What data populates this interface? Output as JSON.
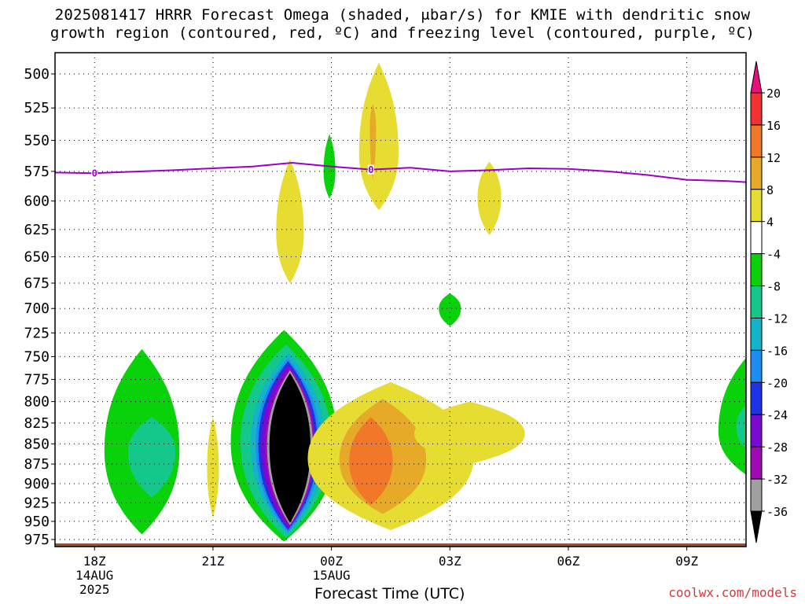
{
  "title_line1": "2025081417 HRRR Forecast Omega (shaded, μbar/s) for KMIE with dendritic snow",
  "title_line2": "growth region (contoured, red, ºC) and freezing level (contoured, purple, ºC)",
  "watermark": "coolwx.com/models",
  "chart_data": {
    "type": "heatmap",
    "xlabel": "Forecast Time (UTC)",
    "ylabel": "",
    "x_unit": "hours since 2025-08-14 17Z",
    "xlim": [
      17,
      34.5
    ],
    "ylim": [
      985,
      485
    ],
    "y_scale": "log-pressure",
    "x_ticks": [
      {
        "x": 18,
        "label": "18Z",
        "sub": [
          "14AUG",
          "2025"
        ]
      },
      {
        "x": 21,
        "label": "21Z",
        "sub": []
      },
      {
        "x": 24,
        "label": "00Z",
        "sub": [
          "15AUG"
        ]
      },
      {
        "x": 27,
        "label": "03Z",
        "sub": []
      },
      {
        "x": 30,
        "label": "06Z",
        "sub": []
      },
      {
        "x": 33,
        "label": "09Z",
        "sub": []
      }
    ],
    "y_ticks": [
      500,
      525,
      550,
      575,
      600,
      625,
      650,
      675,
      700,
      725,
      750,
      775,
      800,
      825,
      850,
      875,
      900,
      925,
      950,
      975
    ],
    "grid": true,
    "colorbar": {
      "labels": [
        "20",
        "16",
        "12",
        "8",
        "4",
        "-4",
        "-8",
        "-12",
        "-16",
        "-20",
        "-24",
        "-28",
        "-32",
        "-36"
      ],
      "bins": [
        {
          "color": "#e8107a",
          "range": [
            20,
            null
          ]
        },
        {
          "color": "#f03232",
          "range": [
            16,
            20
          ]
        },
        {
          "color": "#f07828",
          "range": [
            12,
            16
          ]
        },
        {
          "color": "#e6aa28",
          "range": [
            8,
            12
          ]
        },
        {
          "color": "#e6dc32",
          "range": [
            4,
            8
          ]
        },
        {
          "color": "#ffffff",
          "range": [
            -4,
            4
          ]
        },
        {
          "color": "#0ad20a",
          "range": [
            -8,
            -4
          ]
        },
        {
          "color": "#14c88c",
          "range": [
            -12,
            -8
          ]
        },
        {
          "color": "#14b4c8",
          "range": [
            -16,
            -12
          ]
        },
        {
          "color": "#1e8cf0",
          "range": [
            -20,
            -16
          ]
        },
        {
          "color": "#1e32e6",
          "range": [
            -24,
            -20
          ]
        },
        {
          "color": "#780ad2",
          "range": [
            -28,
            -24
          ]
        },
        {
          "color": "#a00ab4",
          "range": [
            -32,
            -28
          ]
        },
        {
          "color": "#a0a0a0",
          "range": [
            -36,
            -32
          ]
        },
        {
          "color": "#000000",
          "range": [
            null,
            -36
          ]
        }
      ]
    },
    "regions": [
      {
        "name": "ascent-core-2300Z",
        "layers": [
          {
            "value": -6,
            "cx": 22.8,
            "cp": 848,
            "hx": 1.35,
            "pt": 722,
            "pb": 978
          },
          {
            "value": -10,
            "cx": 22.85,
            "cp": 848,
            "hx": 1.15,
            "pt": 737,
            "pb": 973
          },
          {
            "value": -14,
            "cx": 22.9,
            "cp": 850,
            "hx": 0.95,
            "pt": 746,
            "pb": 968
          },
          {
            "value": -18,
            "cx": 22.9,
            "cp": 852,
            "hx": 0.82,
            "pt": 752,
            "pb": 965
          },
          {
            "value": -22,
            "cx": 22.9,
            "cp": 852,
            "hx": 0.75,
            "pt": 755,
            "pb": 962
          },
          {
            "value": -26,
            "cx": 22.9,
            "cp": 852,
            "hx": 0.68,
            "pt": 759,
            "pb": 959
          },
          {
            "value": -30,
            "cx": 22.95,
            "cp": 853,
            "hx": 0.63,
            "pt": 762,
            "pb": 957
          },
          {
            "value": -34,
            "cx": 22.95,
            "cp": 853,
            "hx": 0.58,
            "pt": 765,
            "pb": 955
          },
          {
            "value": -40,
            "cx": 22.95,
            "cp": 853,
            "hx": 0.52,
            "pt": 768,
            "pb": 952
          }
        ]
      },
      {
        "name": "ascent-1900Z",
        "layers": [
          {
            "value": -6,
            "cx": 19.2,
            "cp": 858,
            "hx": 0.95,
            "pt": 742,
            "pb": 968
          },
          {
            "value": -10,
            "cx": 19.45,
            "cp": 860,
            "hx": 0.6,
            "pt": 818,
            "pb": 918
          }
        ]
      },
      {
        "name": "ascent-1000Z",
        "layers": [
          {
            "value": -6,
            "cx": 34.7,
            "cp": 835,
            "hx": 0.9,
            "pt": 742,
            "pb": 895
          },
          {
            "value": -10,
            "cx": 34.6,
            "cp": 830,
            "hx": 0.35,
            "pt": 800,
            "pb": 860
          }
        ]
      },
      {
        "name": "descent-0100Z",
        "layers": [
          {
            "value": 6,
            "cx": 25.5,
            "cp": 868,
            "hx": 2.1,
            "pt": 778,
            "pb": 962
          },
          {
            "value": 10,
            "cx": 25.3,
            "cp": 870,
            "hx": 1.1,
            "pt": 797,
            "pb": 940
          },
          {
            "value": 14,
            "cx": 25.0,
            "cp": 872,
            "hx": 0.55,
            "pt": 818,
            "pb": 928
          }
        ]
      },
      {
        "name": "descent-0300Z-ext",
        "layers": [
          {
            "value": 6,
            "cx": 27.5,
            "cp": 838,
            "hx": 1.4,
            "pt": 800,
            "pb": 875
          }
        ]
      },
      {
        "name": "descent-aloft-0100Z",
        "layers": [
          {
            "value": 6,
            "cx": 25.2,
            "cp": 560,
            "hx": 0.5,
            "pt": 492,
            "pb": 608
          },
          {
            "value": 10,
            "cx": 25.05,
            "cp": 540,
            "hx": 0.08,
            "pt": 522,
            "pb": 582
          }
        ]
      },
      {
        "name": "descent-aloft-2300Z",
        "layers": [
          {
            "value": 6,
            "cx": 22.95,
            "cp": 628,
            "hx": 0.35,
            "pt": 565,
            "pb": 675
          }
        ]
      },
      {
        "name": "descent-aloft-0400Z",
        "layers": [
          {
            "value": 6,
            "cx": 28.0,
            "cp": 597,
            "hx": 0.3,
            "pt": 567,
            "pb": 630
          }
        ]
      },
      {
        "name": "descent-2100Z",
        "layers": [
          {
            "value": 6,
            "cx": 21.0,
            "cp": 880,
            "hx": 0.15,
            "pt": 818,
            "pb": 945
          }
        ]
      },
      {
        "name": "ascent-aloft-0000Z",
        "layers": [
          {
            "value": -6,
            "cx": 23.95,
            "cp": 575,
            "hx": 0.15,
            "pt": 545,
            "pb": 598
          }
        ]
      },
      {
        "name": "ascent-0300Z",
        "layers": [
          {
            "value": -6,
            "cx": 27.0,
            "cp": 700,
            "hx": 0.28,
            "pt": 685,
            "pb": 718
          }
        ]
      }
    ],
    "freezing_level": {
      "label": "0",
      "color": "#9b00c8",
      "x": [
        17,
        18,
        20,
        22,
        23,
        24,
        25,
        26,
        27,
        28,
        29,
        30,
        31,
        32,
        33,
        34,
        34.5
      ],
      "p": [
        576,
        576.5,
        574,
        571,
        568,
        571,
        573.5,
        572,
        575,
        574,
        572.5,
        573,
        575,
        578,
        582,
        583,
        584
      ],
      "label_x": [
        18,
        25
      ]
    },
    "terrain": {
      "color": "#a0522d",
      "p_top": 980.5
    }
  }
}
